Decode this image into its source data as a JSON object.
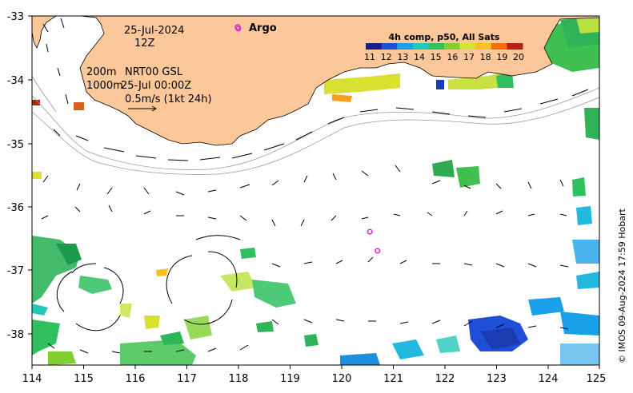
{
  "map": {
    "lon_range": [
      114,
      125
    ],
    "lat_range": [
      -38.5,
      -33
    ],
    "x_ticks": [
      "114",
      "115",
      "116",
      "117",
      "118",
      "119",
      "120",
      "121",
      "122",
      "123",
      "124",
      "125"
    ],
    "y_ticks": [
      "-33",
      "-34",
      "-35",
      "-36",
      "-37",
      "-38"
    ],
    "land_color": "#fcc89a",
    "sea_color": "#ffffff"
  },
  "annotations": {
    "date": "25-Jul-2024",
    "time": "12Z",
    "contour_200": "200m",
    "contour_1000": "1000m",
    "product": "NRT00 GSL",
    "product_time": "25-Jul 00:00Z",
    "scale_label": "0.5m/s (1kt 24h)"
  },
  "legend": {
    "argo_label": "Argo",
    "argo_color": "#e020e0"
  },
  "colorbar": {
    "title": "4h comp, p50, All Sats",
    "ticks": [
      "11",
      "12",
      "13",
      "14",
      "15",
      "16",
      "17",
      "18",
      "19",
      "20"
    ],
    "colors": [
      "#1a1a8c",
      "#1f4fd6",
      "#1aa0e8",
      "#22c8b8",
      "#2fc060",
      "#7fd030",
      "#d8e030",
      "#f8c020",
      "#f07010",
      "#b82010"
    ]
  },
  "argo_floats": [
    {
      "lon": 118.0,
      "lat": -33.2
    },
    {
      "lon": 120.55,
      "lat": -36.4
    },
    {
      "lon": 120.7,
      "lat": -36.7
    }
  ],
  "credit": "© IMOS 09-Aug-2024 17:59 Hobart"
}
